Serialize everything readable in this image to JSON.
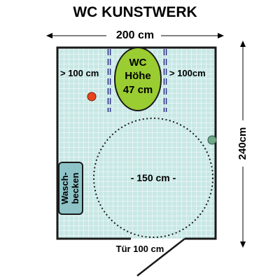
{
  "title": "WC KUNSTWERK",
  "width_label": "200 cm",
  "height_label": "240cm",
  "door_label": "Tür 100 cm",
  "circle_label": "- 150 cm -",
  "left_clearance": "> 100 cm",
  "right_clearance": "> 100cm",
  "toilet": {
    "line1": "WC",
    "line2": "Höhe",
    "line3": "47 cm"
  },
  "sink": {
    "line1": "Wasch-",
    "line2": "becken"
  },
  "colors": {
    "floor_tile": "#c8e8e6",
    "tile_grid": "#ffffff",
    "wall": "#1a1a1a",
    "toilet_fill": "#9acd32",
    "sink_fill": "#8ec4c8",
    "grab_bar": "#1a237e",
    "red_dot": "#e8451e",
    "green_dot": "#6fa98a"
  }
}
